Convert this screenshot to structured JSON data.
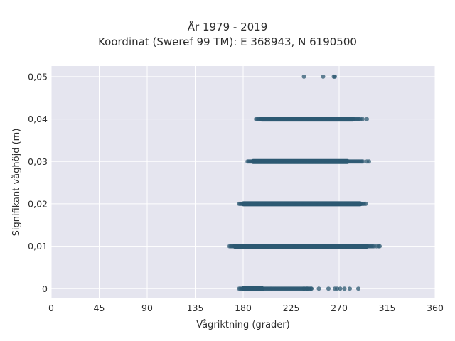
{
  "chart_data": {
    "type": "scatter",
    "title": "År 1979 - 2019",
    "subtitle": "Koordinat (Sweref 99 TM): E 368943, N 6190500",
    "xlabel": "Vågriktning (grader)",
    "ylabel": "Signifikant våghöjd (m)",
    "xlim": [
      0,
      360
    ],
    "ylim": [
      -0.0023,
      0.0525
    ],
    "x_ticks": [
      0,
      45,
      90,
      135,
      180,
      225,
      270,
      315,
      360
    ],
    "x_tick_labels": [
      "0",
      "45",
      "90",
      "135",
      "180",
      "225",
      "270",
      "315",
      "360"
    ],
    "y_ticks": [
      0,
      0.01,
      0.02,
      0.03,
      0.04,
      0.05
    ],
    "y_tick_labels": [
      "0",
      "0,01",
      "0,02",
      "0,03",
      "0,04",
      "0,05"
    ],
    "grid": true,
    "background": "#e5e5ef",
    "point_color": "#2e5a72",
    "bands": [
      {
        "y": 0.05,
        "points": [
          237,
          255,
          265,
          266
        ]
      },
      {
        "y": 0.04,
        "from": 192,
        "to": 290,
        "dense_from": 195,
        "dense_to": 285,
        "extra": [
          292,
          296
        ]
      },
      {
        "y": 0.03,
        "from": 184,
        "to": 293,
        "dense_from": 187,
        "dense_to": 280,
        "extra": [
          296,
          298
        ]
      },
      {
        "y": 0.02,
        "from": 176,
        "to": 294,
        "dense_from": 178,
        "dense_to": 292,
        "extra": [
          295
        ]
      },
      {
        "y": 0.01,
        "from": 167,
        "to": 303,
        "dense_from": 170,
        "dense_to": 298,
        "extra": [
          305,
          307,
          308
        ]
      },
      {
        "y": 0.0,
        "from": 176,
        "to": 244,
        "dense_from": 178,
        "dense_to": 200,
        "extra": [
          237,
          240,
          244,
          251,
          260,
          266,
          268,
          271,
          275,
          280,
          288
        ]
      }
    ]
  }
}
